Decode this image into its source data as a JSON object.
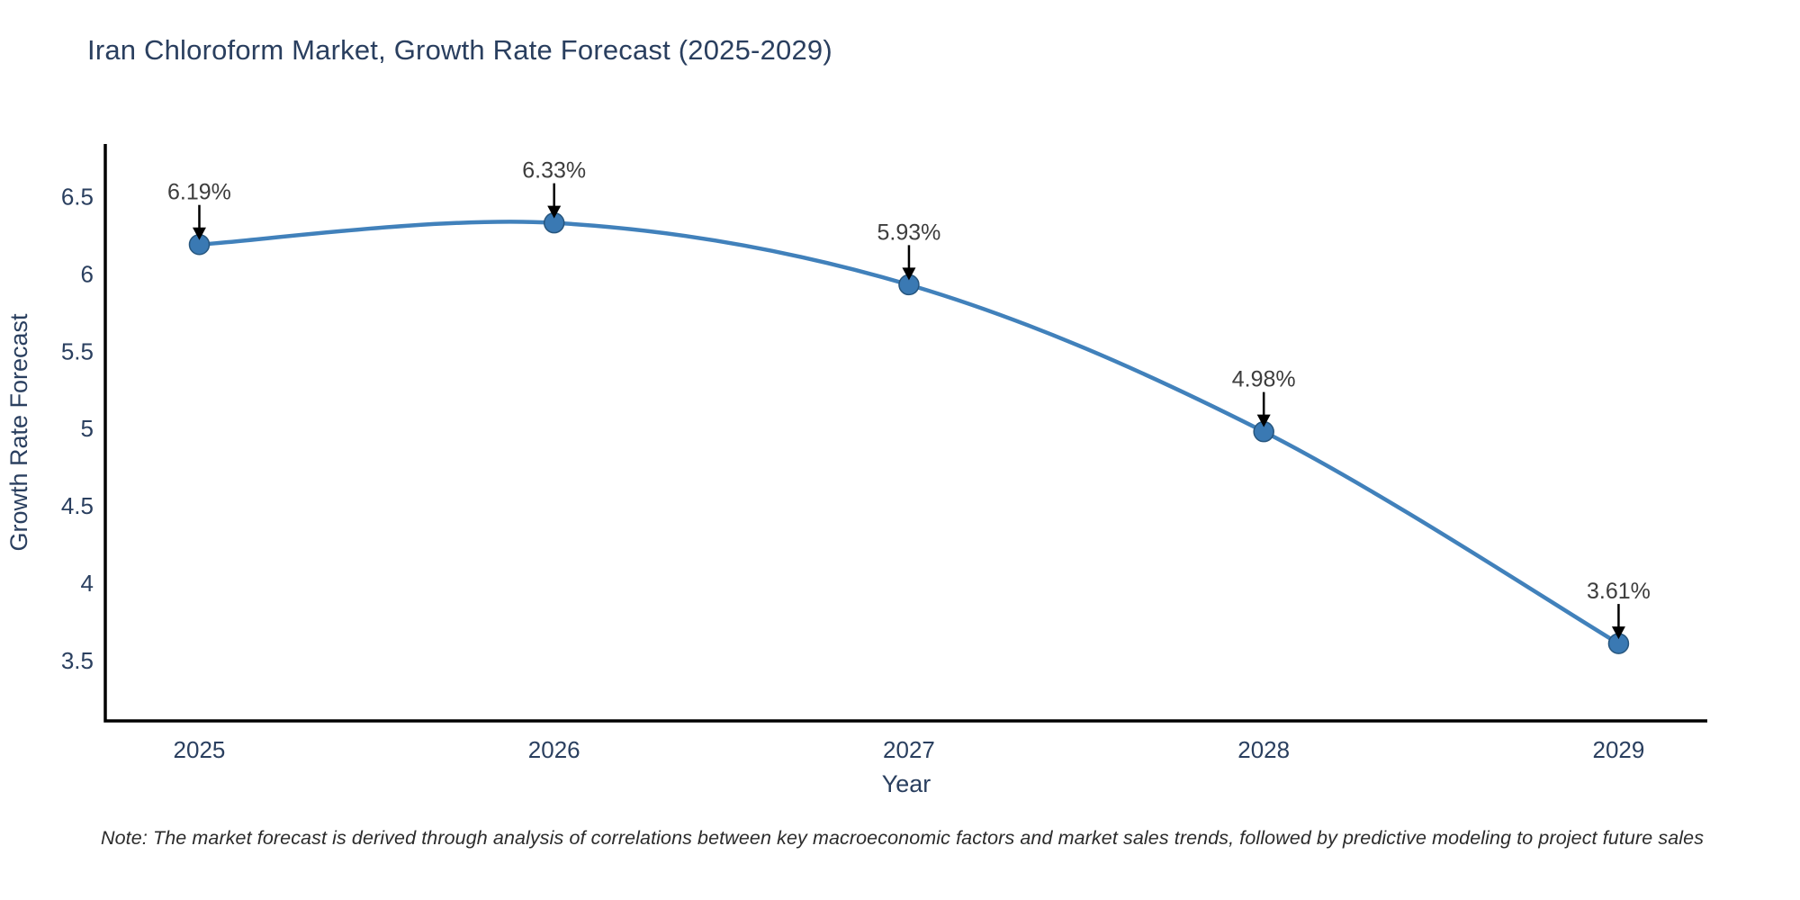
{
  "chart_data": {
    "type": "line",
    "title": "Iran Chloroform Market, Growth Rate Forecast (2025-2029)",
    "x": [
      2025,
      2026,
      2027,
      2028,
      2029
    ],
    "series": [
      {
        "name": "Growth Rate Forecast",
        "values": [
          6.19,
          6.33,
          5.93,
          4.98,
          3.61
        ],
        "point_labels": [
          "6.19%",
          "6.33%",
          "5.93%",
          "4.98%",
          "3.61%"
        ]
      }
    ],
    "xlabel": "Year",
    "ylabel": "Growth Rate Forecast",
    "yticks": [
      3.5,
      4,
      4.5,
      5,
      5.5,
      6,
      6.5
    ],
    "xticks": [
      "2025",
      "2026",
      "2027",
      "2028",
      "2029"
    ],
    "xlim": [
      2024.735,
      2029.25
    ],
    "ylim": [
      3.11,
      6.84
    ],
    "grid": false,
    "legend": false,
    "line_shape": "spline",
    "annotations_arrow": "down-arrow-to-point",
    "colors": {
      "line": "#4181bb",
      "marker_fill": "#3a79b3",
      "marker_edge": "#27567e",
      "axis_line": "#000000",
      "axis_text": "#2a3f5f",
      "annotation_text": "#3d3d3d",
      "arrow": "#000000",
      "background": "#ffffff"
    },
    "note": "Note: The market forecast is derived through analysis of correlations between key macroeconomic factors and market sales trends, followed by predictive modeling to project future sales"
  }
}
